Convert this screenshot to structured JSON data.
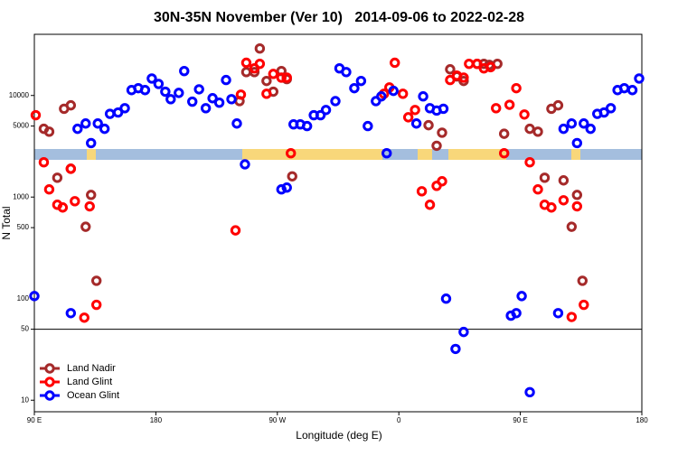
{
  "chart_data": {
    "type": "scatter",
    "title": "30N-35N November (Ver 10)   2014-09-06 to 2022-02-28",
    "x_label": "Longitude (deg E)",
    "y_label": "N Total",
    "xlim": [
      90,
      540
    ],
    "xticks": [
      {
        "value": 90,
        "label": "90 E"
      },
      180,
      {
        "value": 270,
        "label": "90 W"
      },
      {
        "value": 360,
        "label": "0"
      },
      {
        "value": 450,
        "label": "90 E"
      },
      {
        "value": 540,
        "label": "180"
      }
    ],
    "ylim": [
      7.7,
      40000
    ],
    "yticks": [
      10,
      50,
      100,
      500,
      1000,
      5000,
      10000
    ],
    "log_y": true,
    "reference_line": 50,
    "legend": "bottom-left",
    "series": [
      {
        "name": "Land Nadir",
        "color": "#a52a2a",
        "x": [
          97,
          101,
          107,
          112,
          117,
          117,
          128,
          132,
          136,
          242,
          247,
          253,
          257,
          262,
          267,
          273,
          277,
          281,
          382,
          388,
          392,
          398,
          403,
          408,
          418,
          423,
          427,
          433,
          438,
          457,
          463,
          468,
          473,
          478,
          482,
          488,
          492,
          496
        ],
        "values": [
          4700,
          4400,
          1550,
          7400,
          8000,
          1900,
          510,
          1050,
          150,
          8800,
          17000,
          17000,
          29000,
          13900,
          10900,
          17400,
          14500,
          1600,
          5100,
          3200,
          4300,
          18100,
          15400,
          13900,
          20500,
          20500,
          20000,
          20500,
          4200,
          4700,
          4400,
          1550,
          7400,
          8000,
          1460,
          510,
          1050,
          150
        ]
      },
      {
        "name": "Land Glint",
        "color": "#ff0000",
        "x": [
          91,
          97,
          101,
          107,
          111,
          117,
          120,
          127,
          131,
          136,
          239,
          243,
          247,
          253,
          257,
          262,
          267,
          273,
          277,
          280,
          349,
          353,
          357,
          363,
          367,
          372,
          377,
          383,
          388,
          392,
          398,
          403,
          408,
          412,
          418,
          423,
          428,
          432,
          438,
          442,
          447,
          453,
          457,
          463,
          468,
          473,
          482,
          488,
          492,
          497
        ],
        "values": [
          6400,
          2200,
          1190,
          840,
          790,
          1900,
          910,
          65,
          810,
          87,
          470,
          10200,
          21000,
          18500,
          20500,
          10400,
          16300,
          15000,
          15000,
          2700,
          10400,
          12000,
          21000,
          10400,
          6100,
          7200,
          1140,
          840,
          1290,
          1430,
          14200,
          15700,
          15000,
          20500,
          20500,
          18500,
          19000,
          7500,
          2700,
          8100,
          11800,
          6500,
          2200,
          1190,
          840,
          790,
          930,
          66,
          810,
          87
        ]
      },
      {
        "name": "Ocean Glint",
        "color": "#0000ff",
        "x": [
          90,
          117,
          122,
          128,
          132,
          137,
          142,
          146,
          152,
          157,
          162,
          167,
          172,
          177,
          182,
          187,
          191,
          197,
          201,
          207,
          212,
          217,
          222,
          227,
          232,
          236,
          240,
          246,
          273,
          277,
          282,
          287,
          292,
          297,
          302,
          306,
          313,
          316,
          321,
          327,
          332,
          337,
          343,
          347,
          351,
          356,
          373,
          378,
          383,
          388,
          393,
          395,
          402,
          408,
          443,
          447,
          451,
          457,
          478,
          482,
          488,
          492,
          497,
          502,
          507,
          512,
          517,
          522,
          527,
          533,
          538
        ],
        "values": [
          106,
          72,
          4700,
          5300,
          3400,
          5300,
          4700,
          6600,
          6800,
          7500,
          11300,
          11800,
          11300,
          14700,
          13000,
          10900,
          9200,
          10600,
          17400,
          8700,
          11500,
          7500,
          9400,
          8500,
          14200,
          9200,
          5300,
          2100,
          1190,
          1240,
          5200,
          5200,
          5000,
          6400,
          6400,
          7200,
          8800,
          18500,
          17000,
          11800,
          13900,
          5000,
          8800,
          9800,
          2700,
          11100,
          5300,
          9800,
          7500,
          7100,
          7400,
          100,
          32,
          47,
          68,
          72,
          106,
          12,
          72,
          4700,
          5300,
          3400,
          5300,
          4700,
          6600,
          6800,
          7500,
          11300,
          11800,
          11300,
          14700
        ]
      }
    ]
  }
}
